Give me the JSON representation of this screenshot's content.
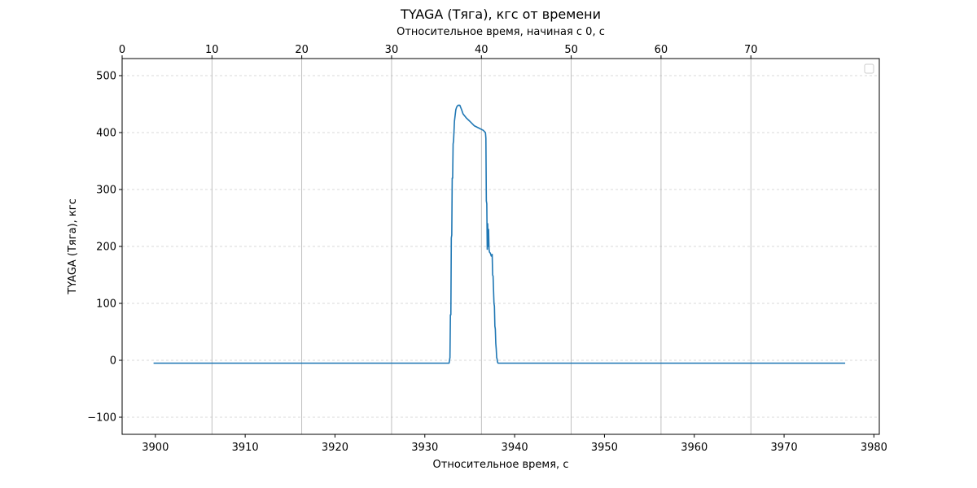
{
  "chart_data": {
    "type": "line",
    "title": "TYAGA (Тяга), кгс от времени",
    "xlabel": "Относительное время, с",
    "x2label": "Относительное время, начиная с 0, с",
    "ylabel": "TYAGA (Тяга), кгс",
    "xlim": [
      3896.3,
      3980.6
    ],
    "ylim": [
      -130,
      530
    ],
    "x2_offset": 3896.3,
    "xticks": [
      3900,
      3910,
      3920,
      3930,
      3940,
      3950,
      3960,
      3970,
      3980
    ],
    "x2ticks": [
      0,
      10,
      20,
      30,
      40,
      50,
      60,
      70
    ],
    "yticks": [
      -100,
      0,
      100,
      200,
      300,
      400,
      500
    ],
    "grid": {
      "x2_major": true,
      "y_major_dashed": true
    },
    "legend": {
      "placement": "top-right",
      "entries": []
    },
    "series": [
      {
        "color": "#1f77b4",
        "x": [
          3899.8,
          3932.7,
          3932.8,
          3932.85,
          3932.9,
          3932.95,
          3933.0,
          3933.05,
          3933.1,
          3933.15,
          3933.2,
          3933.3,
          3933.45,
          3933.55,
          3933.7,
          3933.9,
          3934.1,
          3934.25,
          3934.4,
          3934.6,
          3935.0,
          3935.5,
          3936.0,
          3936.5,
          3936.75,
          3936.8,
          3936.85,
          3936.9,
          3936.95,
          3937.0,
          3937.05,
          3937.1,
          3937.15,
          3937.2,
          3937.3,
          3937.4,
          3937.5,
          3937.55,
          3937.6,
          3937.7,
          3937.75,
          3937.8,
          3937.85,
          3937.9,
          3937.95,
          3938.0,
          3938.05,
          3938.1,
          3938.15,
          3938.2,
          3938.3,
          3976.8
        ],
        "y": [
          -5,
          -5,
          5,
          80,
          80,
          215,
          220,
          320,
          320,
          380,
          385,
          420,
          440,
          445,
          448,
          448,
          440,
          433,
          430,
          426,
          420,
          412,
          408,
          404,
          400,
          390,
          280,
          275,
          195,
          240,
          200,
          230,
          195,
          190,
          188,
          183,
          186,
          150,
          148,
          100,
          95,
          60,
          55,
          30,
          20,
          5,
          2,
          -3,
          -5,
          -5,
          -5,
          -5
        ]
      }
    ]
  }
}
